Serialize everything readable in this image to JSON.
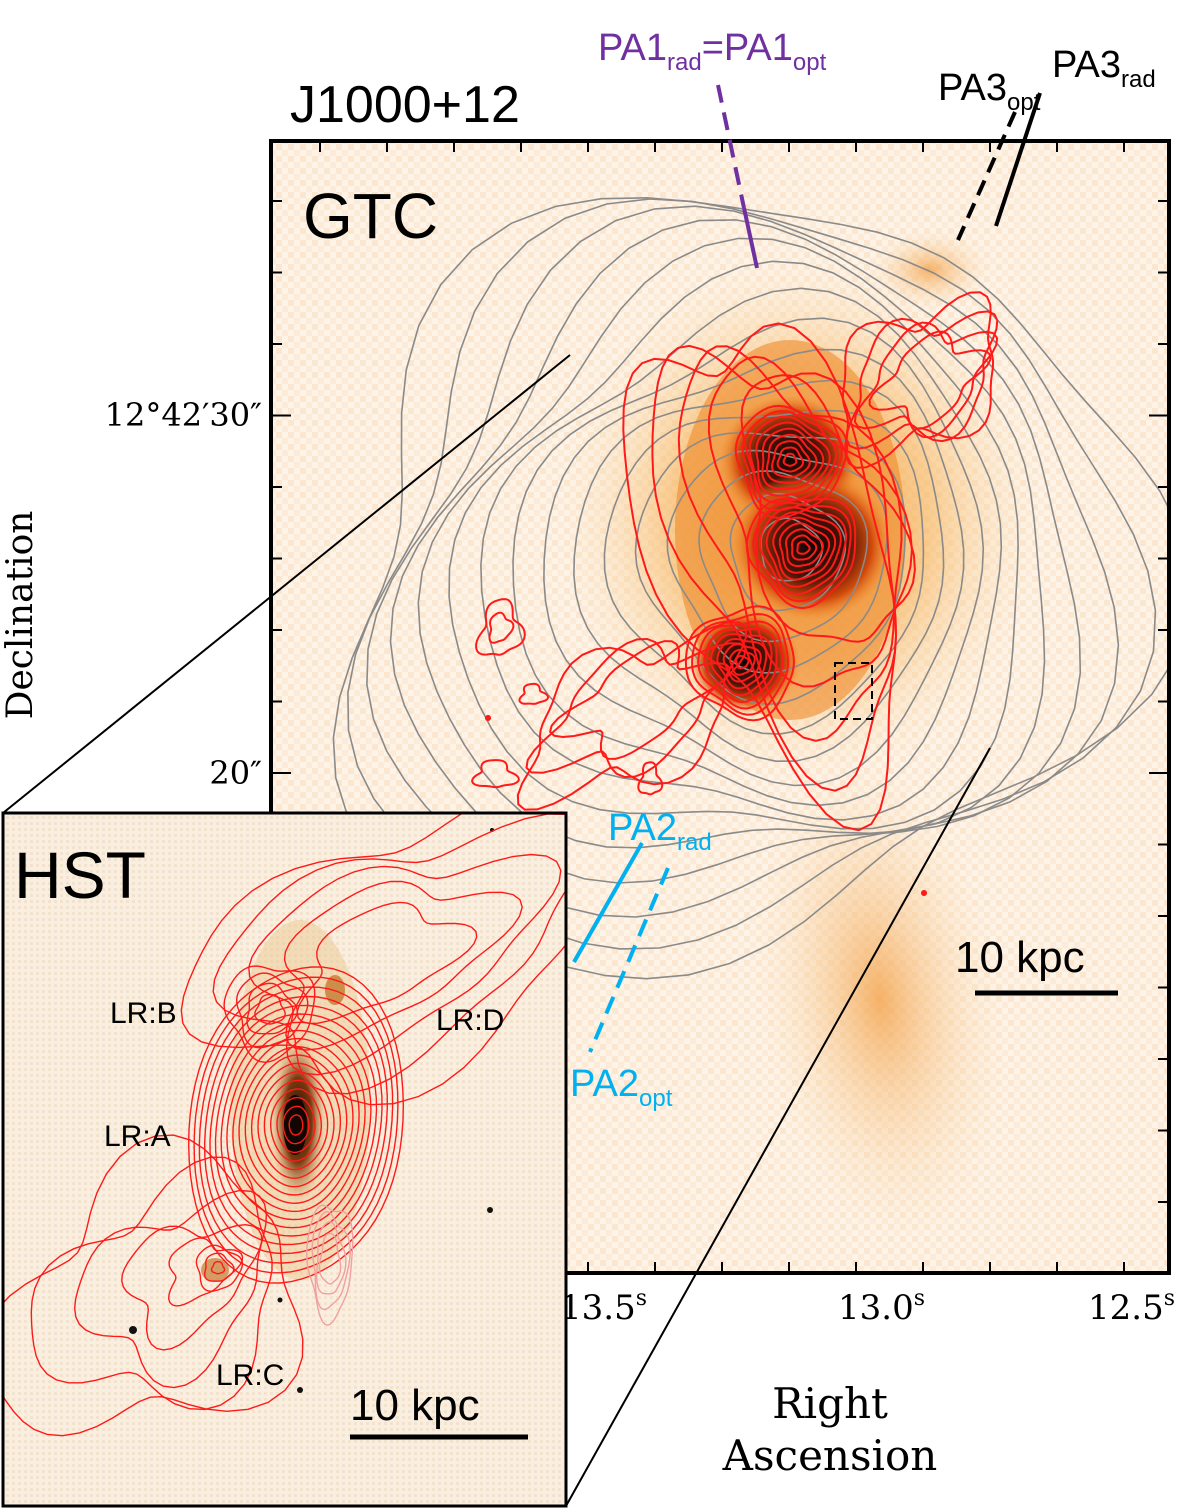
{
  "object_title": "J1000+12",
  "main_panel": {
    "label": "GTC",
    "scale_bar": "10 kpc",
    "dec_axis": {
      "title": "Declination",
      "ticks": [
        {
          "value": 30,
          "label": "12°42′30″"
        },
        {
          "value": 20,
          "label": "20″"
        }
      ]
    },
    "ra_axis": {
      "title_line1": "Right",
      "title_line2": "Ascension",
      "ticks": [
        {
          "value": 13.5,
          "label": "13.5",
          "sup": "s"
        },
        {
          "value": 13.0,
          "label": "13.0",
          "sup": "s"
        },
        {
          "value": 12.5,
          "label": "12.5",
          "sup": "s"
        }
      ]
    }
  },
  "position_angles": {
    "pa1": {
      "base": "PA1",
      "sub1": "rad",
      "eq": "=PA1",
      "sub2": "opt",
      "color": "#7030a0"
    },
    "pa2_rad": {
      "base": "PA2",
      "sub": "rad",
      "color": "#00b0f0"
    },
    "pa2_opt": {
      "base": "PA2",
      "sub": "opt",
      "color": "#00b0f0"
    },
    "pa3_opt": {
      "base": "PA3",
      "sub": "opt",
      "color": "#000000"
    },
    "pa3_rad": {
      "base": "PA3",
      "sub": "rad",
      "color": "#000000"
    }
  },
  "inset_panel": {
    "label": "HST",
    "scale_bar": "10 kpc",
    "regions": [
      "LR:B",
      "LR:D",
      "LR:A",
      "LR:C"
    ]
  },
  "colors": {
    "radio_contours": "#ff1a1a",
    "optical_contours": "#8a8a8a",
    "emission_core": "#1a0a05",
    "emission_mid": "#e8560c",
    "emission_faint": "#f6b860"
  }
}
